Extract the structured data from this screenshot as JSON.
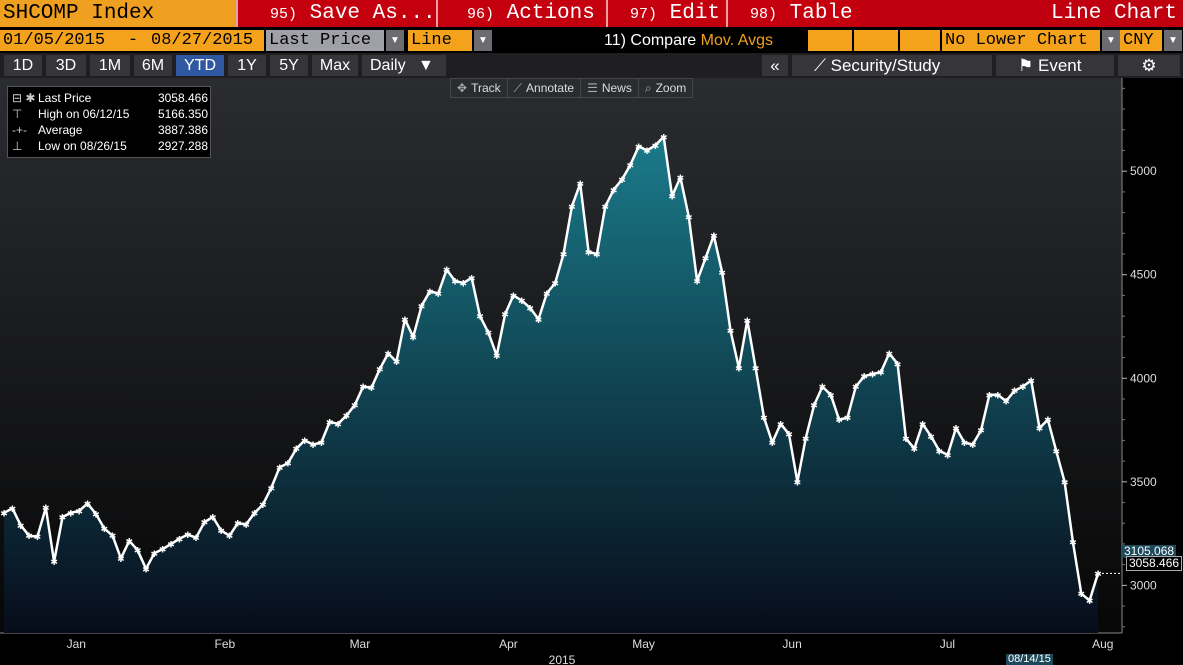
{
  "header": {
    "ticker": "SHCOMP Index",
    "menu": [
      {
        "num": "95)",
        "label": "Save As...",
        "arrow": ""
      },
      {
        "num": "96)",
        "label": "Actions",
        "arrow": "▾"
      },
      {
        "num": "97)",
        "label": "Edit",
        "arrow": "▾"
      },
      {
        "num": "98)",
        "label": "Table",
        "arrow": ""
      }
    ],
    "chart_title": "Line Chart"
  },
  "controls": {
    "start_date": "01/05/2015",
    "dash": "-",
    "end_date": "08/27/2015",
    "field": "Last Price",
    "style": "Line",
    "compare_label": "11) Compare",
    "compare_value": "Mov. Avgs",
    "lower_chart": "No Lower Chart",
    "currency": "CNY"
  },
  "periods": [
    "1D",
    "3D",
    "1M",
    "6M",
    "YTD",
    "1Y",
    "5Y",
    "Max"
  ],
  "active_period": "YTD",
  "frequency": "Daily",
  "right_buttons": {
    "collapse": "«",
    "security_study": "Security/Study",
    "event": "Event",
    "settings_icon": "gear-icon"
  },
  "tools": [
    {
      "icon": "✥",
      "label": "Track"
    },
    {
      "icon": "⟋",
      "label": "Annotate"
    },
    {
      "icon": "☰",
      "label": "News"
    },
    {
      "icon": "⌕",
      "label": "Zoom"
    }
  ],
  "legend": {
    "rows": [
      {
        "sym": "⊟ ✱",
        "label": "Last Price",
        "value": "3058.466"
      },
      {
        "sym": "⊤",
        "label": "High on 06/12/15",
        "value": "5166.350"
      },
      {
        "sym": "-+-",
        "label": "Average",
        "value": "3887.386"
      },
      {
        "sym": "⊥",
        "label": "Low on 08/26/15",
        "value": "2927.288"
      }
    ]
  },
  "tags": {
    "mov_avg": "3105.068",
    "last": "3058.466",
    "date": "08/14/15"
  },
  "chart_data": {
    "type": "area",
    "title": "SHCOMP Index",
    "xlabel": "2015",
    "ylabel": "",
    "ylim": [
      2770,
      5450
    ],
    "yticks": [
      3000,
      3500,
      4000,
      4500,
      5000
    ],
    "months": [
      "Jan",
      "Feb",
      "Mar",
      "Apr",
      "May",
      "Jun",
      "Jul",
      "Aug"
    ],
    "x_range": [
      0,
      162
    ],
    "month_positions": [
      11,
      33,
      53,
      75,
      95,
      117,
      140,
      163
    ],
    "line_color": "#ffffff",
    "fill_top": "#1a7b8a",
    "fill_bottom": "#070c1a",
    "series": [
      {
        "values": [
          3350,
          3372,
          3290,
          3240,
          3235,
          3375,
          3115,
          3330,
          3350,
          3360,
          3395,
          3345,
          3275,
          3240,
          3130,
          3215,
          3170,
          3080,
          3155,
          3175,
          3200,
          3225,
          3245,
          3230,
          3305,
          3330,
          3265,
          3240,
          3300,
          3295,
          3350,
          3390,
          3470,
          3570,
          3590,
          3660,
          3700,
          3680,
          3690,
          3790,
          3780,
          3820,
          3870,
          3960,
          3955,
          4045,
          4120,
          4080,
          4285,
          4200,
          4350,
          4420,
          4410,
          4525,
          4470,
          4460,
          4485,
          4300,
          4220,
          4110,
          4310,
          4400,
          4375,
          4340,
          4285,
          4410,
          4460,
          4600,
          4830,
          4940,
          4610,
          4600,
          4830,
          4910,
          4960,
          5030,
          5120,
          5100,
          5125,
          5166,
          4880,
          4970,
          4780,
          4470,
          4580,
          4690,
          4510,
          4230,
          4050,
          4280,
          4050,
          3810,
          3690,
          3780,
          3730,
          3500,
          3710,
          3870,
          3960,
          3920,
          3800,
          3810,
          3960,
          4010,
          4020,
          4030,
          4120,
          4070,
          3710,
          3660,
          3780,
          3720,
          3650,
          3630,
          3760,
          3690,
          3680,
          3750,
          3920,
          3920,
          3890,
          3940,
          3960,
          3990,
          3760,
          3800,
          3650,
          3500,
          3210,
          2960,
          2927,
          3058
        ]
      }
    ]
  }
}
